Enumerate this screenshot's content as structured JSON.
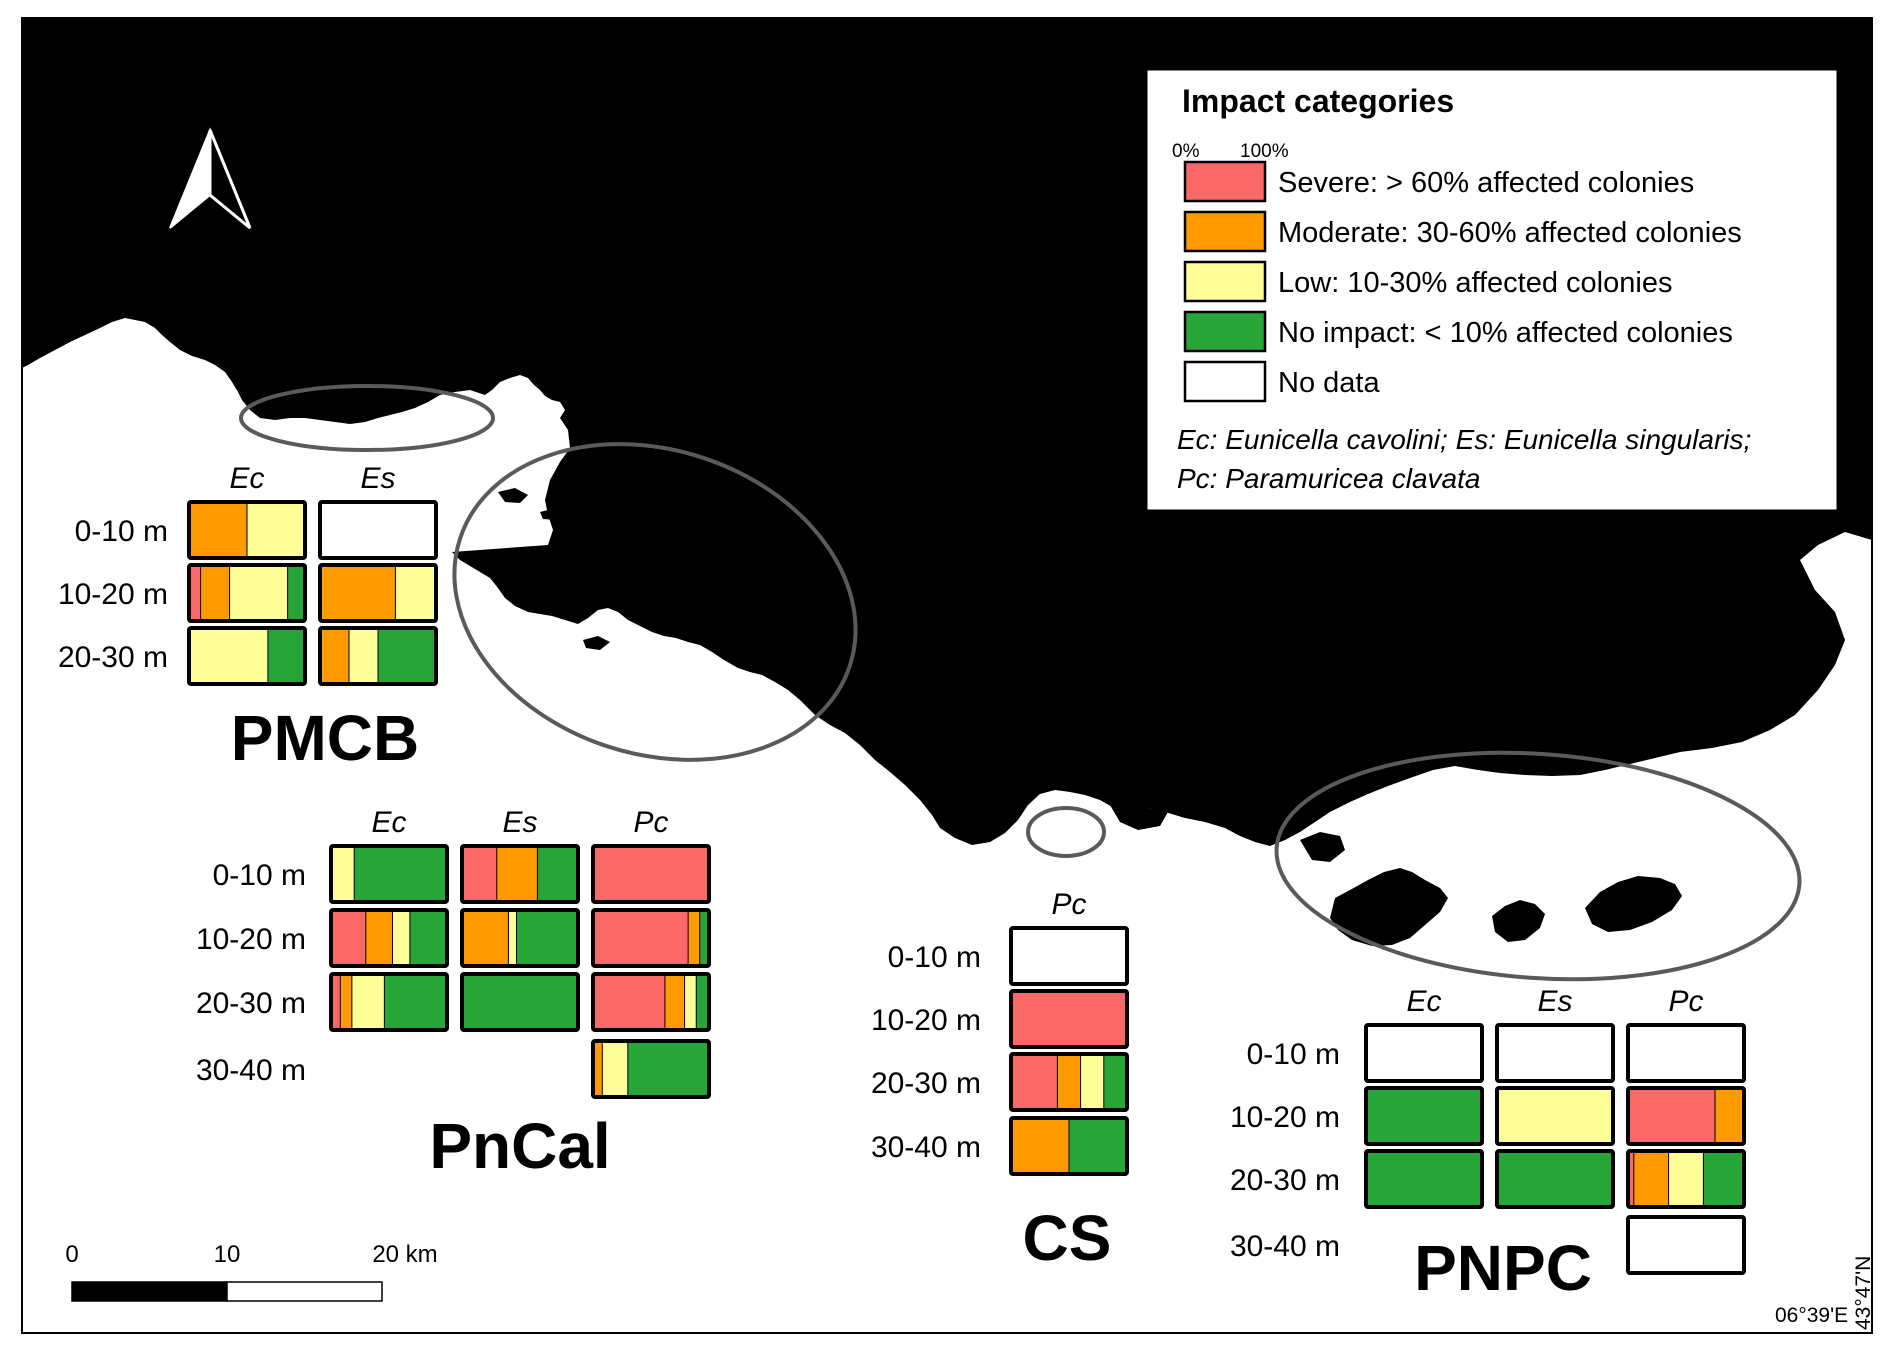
{
  "colors": {
    "severe": "#fb6868",
    "moderate": "#ff9a00",
    "low": "#ffff99",
    "none": "#28a538",
    "nodata": "#ffffff",
    "land": "#000000",
    "sea": "#ffffff",
    "zone_outline": "#5a5a5a"
  },
  "north_arrow": {
    "label": "N"
  },
  "legend": {
    "title": "Impact categories",
    "scale_min": "0%",
    "scale_max": "100%",
    "items": [
      {
        "key": "severe",
        "label": "Severe: > 60% affected colonies"
      },
      {
        "key": "moderate",
        "label": "Moderate: 30-60% affected colonies"
      },
      {
        "key": "low",
        "label": "Low: 10-30% affected colonies"
      },
      {
        "key": "none",
        "label": "No impact: < 10% affected colonies"
      },
      {
        "key": "nodata",
        "label": "No data"
      }
    ],
    "species_line1": "Ec: Eunicella cavolini; Es: Eunicella singularis;",
    "species_line2": "Pc: Paramuricea clavata"
  },
  "scale_bar": {
    "ticks": [
      "0",
      "10",
      "20 km"
    ]
  },
  "coords": {
    "longitude": "06°39'E",
    "latitude": "43°47'N"
  },
  "sites": [
    {
      "name": "PMCB",
      "species": [
        "Ec",
        "Es"
      ],
      "depths": [
        "0-10 m",
        "10-20 m",
        "20-30 m"
      ],
      "cells": [
        [
          {
            "severe": 0,
            "moderate": 0.5,
            "low": 0.5,
            "none": 0
          },
          null
        ],
        [
          {
            "severe": 0.1,
            "moderate": 0.25,
            "low": 0.5,
            "none": 0.15
          },
          {
            "severe": 0,
            "moderate": 0.65,
            "low": 0.35,
            "none": 0
          }
        ],
        [
          {
            "severe": 0,
            "moderate": 0,
            "low": 0.68,
            "none": 0.32
          },
          {
            "severe": 0,
            "moderate": 0.25,
            "low": 0.25,
            "none": 0.5
          }
        ]
      ]
    },
    {
      "name": "PnCal",
      "species": [
        "Ec",
        "Es",
        "Pc"
      ],
      "depths": [
        "0-10 m",
        "10-20 m",
        "20-30 m",
        "30-40 m"
      ],
      "cells": [
        [
          {
            "severe": 0,
            "moderate": 0,
            "low": 0.2,
            "none": 0.8
          },
          {
            "severe": 0.3,
            "moderate": 0.35,
            "low": 0,
            "none": 0.35
          },
          {
            "severe": 1,
            "moderate": 0,
            "low": 0,
            "none": 0
          }
        ],
        [
          {
            "severe": 0.3,
            "moderate": 0.23,
            "low": 0.15,
            "none": 0.32
          },
          {
            "severe": 0,
            "moderate": 0.4,
            "low": 0.07,
            "none": 0.53
          },
          {
            "severe": 0.82,
            "moderate": 0.1,
            "low": 0,
            "none": 0.08
          }
        ],
        [
          {
            "severe": 0.08,
            "moderate": 0.1,
            "low": 0.28,
            "none": 0.54
          },
          {
            "severe": 0,
            "moderate": 0,
            "low": 0,
            "none": 1
          },
          {
            "severe": 0.62,
            "moderate": 0.17,
            "low": 0.1,
            "none": 0.11
          }
        ],
        [
          "blank",
          "blank",
          {
            "severe": 0,
            "moderate": 0.08,
            "low": 0.22,
            "none": 0.7
          }
        ]
      ]
    },
    {
      "name": "CS",
      "species": [
        "Pc"
      ],
      "depths": [
        "0-10 m",
        "10-20 m",
        "20-30 m",
        "30-40 m"
      ],
      "cells": [
        [
          null
        ],
        [
          {
            "severe": 1,
            "moderate": 0,
            "low": 0,
            "none": 0
          }
        ],
        [
          {
            "severe": 0.4,
            "moderate": 0.2,
            "low": 0.2,
            "none": 0.2
          }
        ],
        [
          {
            "severe": 0,
            "moderate": 0.5,
            "low": 0,
            "none": 0.5
          }
        ]
      ]
    },
    {
      "name": "PNPC",
      "species": [
        "Ec",
        "Es",
        "Pc"
      ],
      "depths": [
        "0-10 m",
        "10-20 m",
        "20-30 m",
        "30-40 m"
      ],
      "cells": [
        [
          null,
          null,
          null
        ],
        [
          {
            "severe": 0,
            "moderate": 0,
            "low": 0,
            "none": 1
          },
          {
            "severe": 0,
            "moderate": 0,
            "low": 1,
            "none": 0
          },
          {
            "severe": 0.75,
            "moderate": 0.25,
            "low": 0,
            "none": 0
          }
        ],
        [
          {
            "severe": 0,
            "moderate": 0,
            "low": 0,
            "none": 1
          },
          {
            "severe": 0,
            "moderate": 0,
            "low": 0,
            "none": 1
          },
          {
            "severe": 0.05,
            "moderate": 0.3,
            "low": 0.3,
            "none": 0.35
          }
        ],
        [
          "blank",
          "blank",
          null
        ]
      ]
    }
  ]
}
